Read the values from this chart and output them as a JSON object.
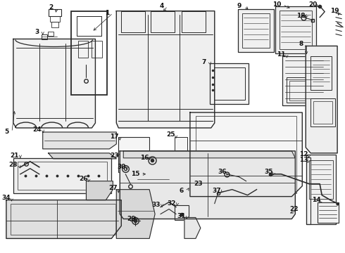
{
  "bg_color": "#ffffff",
  "line_color": "#2a2a2a",
  "text_color": "#111111",
  "fig_width": 4.9,
  "fig_height": 3.6,
  "dpi": 100
}
